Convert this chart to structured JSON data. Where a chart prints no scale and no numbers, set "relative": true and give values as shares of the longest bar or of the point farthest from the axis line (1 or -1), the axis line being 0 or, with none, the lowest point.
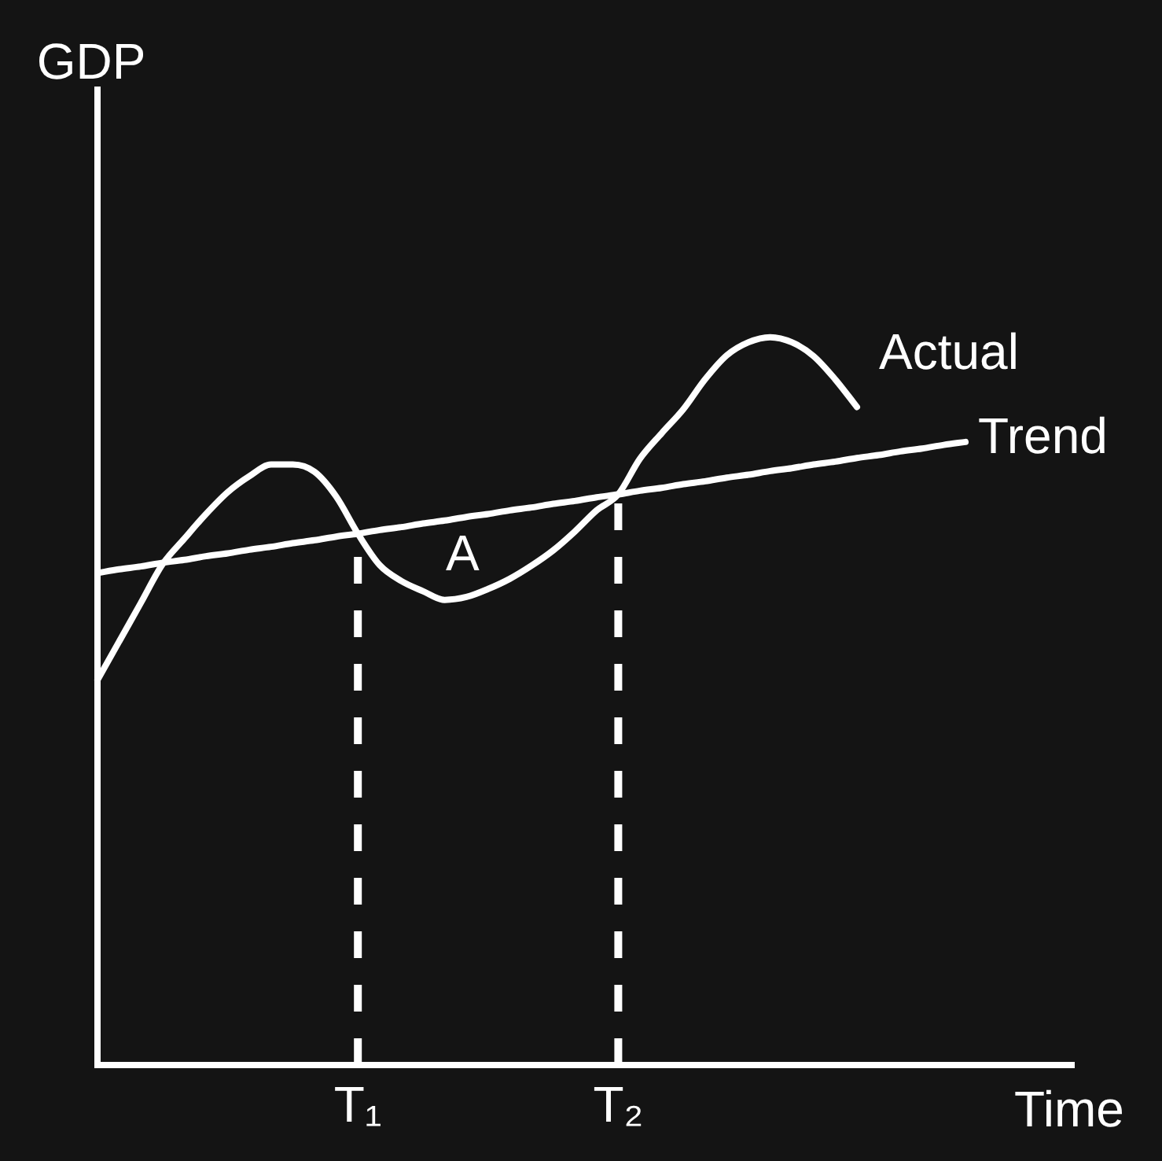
{
  "chart_data": {
    "type": "line",
    "relative": true,
    "xlabel": "Time",
    "ylabel": "GDP",
    "categories": [
      null,
      null,
      null,
      null,
      null,
      null,
      null,
      null,
      null,
      null,
      null,
      null,
      "T₁",
      null,
      null,
      null,
      null,
      null,
      null,
      null,
      null,
      null,
      null,
      null,
      "T₂",
      null,
      null,
      null,
      null,
      null,
      null,
      null,
      null,
      null,
      null,
      null,
      null,
      null,
      null,
      null,
      null,
      null,
      null,
      null,
      null,
      null
    ],
    "marker": "none",
    "series": [
      {
        "name": "Actual",
        "color": "#ffffff",
        "values": [
          0.529,
          0.582,
          0.635,
          0.688,
          0.723,
          0.757,
          0.787,
          0.809,
          0.825,
          0.825,
          0.815,
          0.781,
          0.73,
          0.687,
          0.665,
          0.651,
          0.639,
          0.643,
          0.654,
          0.668,
          0.686,
          0.707,
          0.733,
          0.762,
          0.784,
          0.833,
          0.868,
          0.901,
          0.942,
          0.975,
          0.993,
          1.0,
          0.993,
          0.974,
          0.942,
          0.904,
          null,
          null,
          null,
          null,
          null,
          null,
          null,
          null,
          null,
          null
        ]
      },
      {
        "name": "Trend",
        "color": "#ffffff",
        "values": [
          0.676,
          0.681,
          0.685,
          0.69,
          0.694,
          0.699,
          0.703,
          0.708,
          0.712,
          0.717,
          0.721,
          0.726,
          0.73,
          0.735,
          0.739,
          0.744,
          0.748,
          0.753,
          0.757,
          0.762,
          0.766,
          0.771,
          0.775,
          0.78,
          0.784,
          0.789,
          0.793,
          0.798,
          0.802,
          0.807,
          0.811,
          0.816,
          0.82,
          0.825,
          0.829,
          0.834,
          0.838,
          0.843,
          0.847,
          0.852,
          0.856,
          null,
          null,
          null,
          null,
          null
        ]
      }
    ],
    "ref_lines": [
      {
        "axis": "x",
        "value": "T₁",
        "line_style": "dashed",
        "color": "#ffffff"
      },
      {
        "axis": "x",
        "value": "T₂",
        "line_style": "dashed",
        "color": "#ffffff"
      }
    ],
    "annotations": [
      "A"
    ]
  }
}
